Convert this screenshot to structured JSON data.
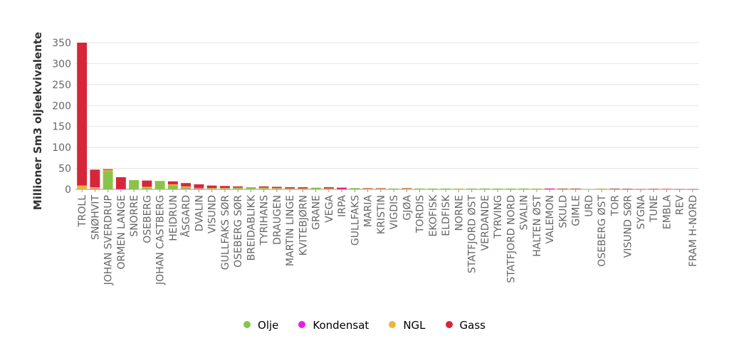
{
  "chart_data": {
    "type": "bar",
    "stacked": true,
    "title": "",
    "xlabel": "",
    "ylabel": "Millioner Sm3 oljeekvivalente",
    "ylim": [
      0,
      350
    ],
    "yticks": [
      0,
      50,
      100,
      150,
      200,
      250,
      300,
      350
    ],
    "grid": true,
    "legend_position": "bottom-center",
    "categories": [
      "TROLL",
      "SNØHVIT",
      "JOHAN SVERDRUP",
      "ORMEN LANGE",
      "SNORRE",
      "OSEBERG",
      "JOHAN CASTBERG",
      "HEIDRUN",
      "ÅSGARD",
      "DVALIN",
      "VISUND",
      "GULLFAKS SØR",
      "OSEBERG SØR",
      "BREIDABLIKK",
      "TYRIHANS",
      "DRAUGEN",
      "MARTIN LINGE",
      "KVITEBJØRN",
      "GRANE",
      "VEGA",
      "IRPA",
      "GULLFAKS",
      "MARIA",
      "KRISTIN",
      "VIGDIS",
      "GJØA",
      "TORDIS",
      "EKOFISK",
      "ELDFISK",
      "NORNE",
      "STATFJORD ØST",
      "VERDANDE",
      "TYRVING",
      "STATFJORD NORD",
      "SVALIN",
      "HALTEN ØST",
      "VALEMON",
      "SKULD",
      "GIMLE",
      "URD",
      "OSEBERG ØST",
      "TOR",
      "VISUND SØR",
      "SYGNA",
      "TUNE",
      "EMBLA",
      "REV",
      "FRAM H-NORD"
    ],
    "series": [
      {
        "name": "Olje",
        "color": "#8bc34a",
        "values": [
          1,
          0,
          44,
          0,
          22,
          4,
          20,
          10,
          3,
          1,
          2,
          2,
          3,
          5,
          3,
          2,
          1,
          1,
          4,
          1,
          0,
          3,
          1,
          1,
          2,
          1,
          2,
          2,
          2,
          1,
          2,
          2,
          2,
          2,
          2,
          1,
          0.5,
          1,
          1,
          0.5,
          1,
          1,
          0.5,
          0.3,
          0.3,
          0.5,
          0.2,
          0.2
        ]
      },
      {
        "name": "Kondensat",
        "color": "#e91ee8",
        "values": [
          0,
          1,
          0,
          1,
          0,
          0,
          0,
          0,
          1,
          1,
          0,
          0,
          0,
          0,
          0,
          0,
          0,
          0,
          0,
          0,
          1,
          0,
          0,
          0,
          0,
          0,
          0,
          0,
          0,
          0,
          0,
          0,
          0,
          0,
          0,
          0,
          0.5,
          0,
          0,
          0,
          0,
          0,
          0,
          0,
          0,
          0,
          0,
          0
        ]
      },
      {
        "name": "NGL",
        "color": "#f0b23c",
        "values": [
          8,
          4,
          2,
          0,
          0,
          2,
          0,
          2,
          3,
          1,
          1,
          1,
          1,
          0,
          1,
          1,
          1,
          1,
          0,
          1,
          0,
          0,
          1,
          1,
          0,
          1,
          0,
          0,
          0,
          1,
          0,
          0,
          0,
          0,
          0,
          1,
          0,
          0,
          0,
          0,
          1,
          0,
          0,
          0,
          0,
          0,
          0,
          0
        ]
      },
      {
        "name": "Gass",
        "color": "#d72639",
        "values": [
          341,
          42,
          2,
          28,
          0,
          15,
          0,
          7,
          8,
          9,
          6,
          5,
          3,
          0,
          3,
          3,
          3,
          3,
          0,
          3,
          3,
          0,
          1,
          1,
          0,
          1,
          0,
          0,
          0,
          0,
          0,
          0,
          0,
          0,
          0,
          0,
          1,
          1,
          1,
          0,
          0,
          1,
          1,
          0.3,
          1,
          0.5,
          0.2,
          0.2
        ]
      }
    ]
  }
}
